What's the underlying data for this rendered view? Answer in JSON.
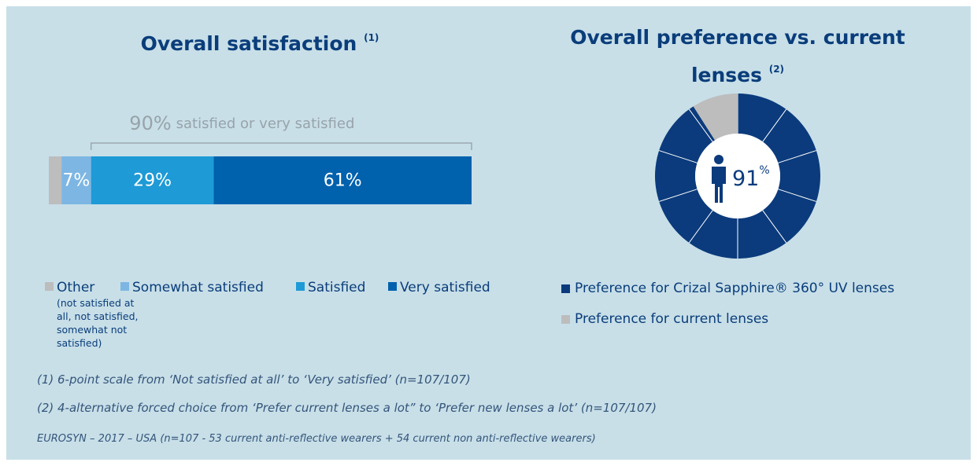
{
  "chart_data": [
    {
      "type": "bar",
      "orientation": "horizontal",
      "stacked": true,
      "title": "Overall satisfaction",
      "title_note": "(1)",
      "xlim": [
        0,
        100
      ],
      "series": [
        {
          "name": "Other",
          "note": "(not satisfied at all, not satisfied, somewhat not satisfied)",
          "color": "#bdbdbd",
          "values": [
            3
          ]
        },
        {
          "name": "Somewhat satisfied",
          "color": "#7db6e3",
          "values": [
            7
          ],
          "value_labels": [
            "7%"
          ]
        },
        {
          "name": "Satisfied",
          "color": "#1e9ad6",
          "values": [
            29
          ],
          "value_labels": [
            "29%"
          ]
        },
        {
          "name": "Very satisfied",
          "color": "#0061ad",
          "values": [
            61
          ],
          "value_labels": [
            "61%"
          ]
        }
      ],
      "annotation": {
        "value_label": "90%",
        "text": "satisfied or very satisfied"
      }
    },
    {
      "type": "donut",
      "title": "Overall preference vs. current lenses",
      "title_note": "(2)",
      "categories": [
        "Preference for Crizal Sapphire® 360° UV lenses",
        "Preference for current lenses"
      ],
      "values": [
        91,
        9
      ],
      "colors": [
        "#0b3b7c",
        "#bdbdbd"
      ],
      "center_unit": "%"
    }
  ],
  "footnotes": [
    "(1) 6-point scale from ‘Not satisfied at all’ to ‘Very satisfied’ (n=107/107)",
    "(2) 4-alternative forced choice from ‘Prefer current lenses a lot” to ‘Prefer new lenses a lot’ (n=107/107)"
  ],
  "source": "EUROSYN – 2017 – USA (n=107 - 53 current anti-reflective wearers + 54 current non anti-reflective wearers)"
}
